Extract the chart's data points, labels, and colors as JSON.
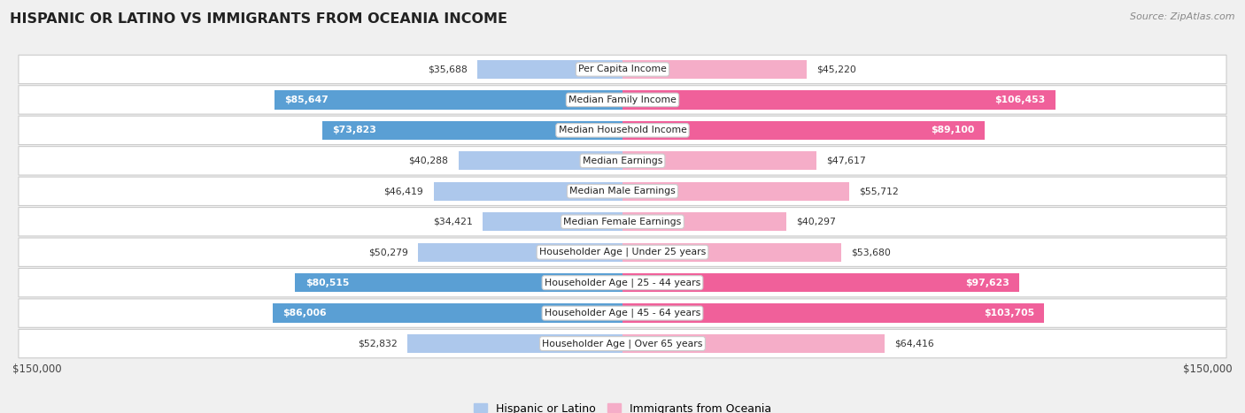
{
  "title": "HISPANIC OR LATINO VS IMMIGRANTS FROM OCEANIA INCOME",
  "source": "Source: ZipAtlas.com",
  "categories": [
    "Per Capita Income",
    "Median Family Income",
    "Median Household Income",
    "Median Earnings",
    "Median Male Earnings",
    "Median Female Earnings",
    "Householder Age | Under 25 years",
    "Householder Age | 25 - 44 years",
    "Householder Age | 45 - 64 years",
    "Householder Age | Over 65 years"
  ],
  "hispanic_values": [
    35688,
    85647,
    73823,
    40288,
    46419,
    34421,
    50279,
    80515,
    86006,
    52832
  ],
  "oceania_values": [
    45220,
    106453,
    89100,
    47617,
    55712,
    40297,
    53680,
    97623,
    103705,
    64416
  ],
  "hispanic_labels": [
    "$35,688",
    "$85,647",
    "$73,823",
    "$40,288",
    "$46,419",
    "$34,421",
    "$50,279",
    "$80,515",
    "$86,006",
    "$52,832"
  ],
  "oceania_labels": [
    "$45,220",
    "$106,453",
    "$89,100",
    "$47,617",
    "$55,712",
    "$40,297",
    "$53,680",
    "$97,623",
    "$103,705",
    "$64,416"
  ],
  "hispanic_color_light": "#adc8ec",
  "hispanic_color_dark": "#5a9fd4",
  "oceania_color_light": "#f5adc8",
  "oceania_color_dark": "#f0609a",
  "max_value": 150000,
  "bg_color": "#f0f0f0",
  "row_bg": "#f8f8f8",
  "row_border": "#dddddd",
  "xlabel_left": "$150,000",
  "xlabel_right": "$150,000",
  "legend_hispanic": "Hispanic or Latino",
  "legend_oceania": "Immigrants from Oceania",
  "hispanic_threshold": 60000,
  "oceania_threshold": 70000
}
